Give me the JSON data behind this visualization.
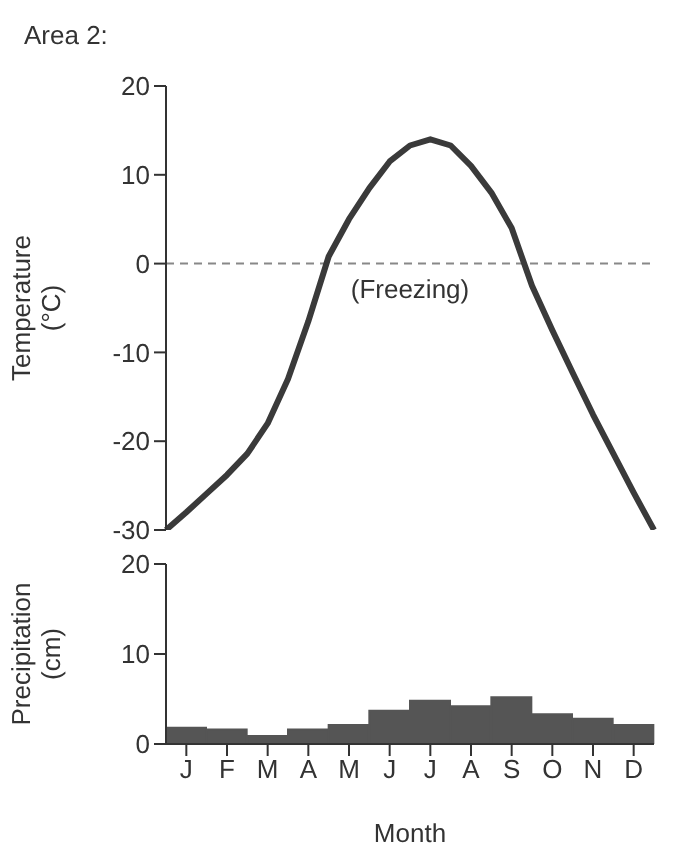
{
  "chart_data": [
    {
      "type": "line",
      "title": "Area 2:",
      "ylabel": "Temperature (°C)",
      "categories": [
        null,
        null,
        null,
        null,
        null,
        null,
        null,
        null,
        null,
        null,
        null,
        null,
        null,
        null,
        null,
        null,
        null,
        null,
        null,
        null,
        null,
        null,
        null,
        null,
        null
      ],
      "series": [
        {
          "color": "#3a3a3a",
          "values": [
            -30,
            -28,
            -25.9,
            -23.8,
            -21.4,
            -18,
            -13,
            -6.5,
            0.8,
            5,
            8.5,
            11.5,
            13.3,
            14,
            13.3,
            11,
            8,
            4,
            -2.5,
            -7.5,
            -12.3,
            -17,
            -21.4,
            -25.8,
            -30
          ]
        }
      ],
      "ylim": [
        -30,
        20
      ],
      "yticks": [
        -30,
        -20,
        -10,
        0,
        10,
        20
      ],
      "tick_labels": "y",
      "ref_lines": [
        {
          "axis": "y",
          "value": 0,
          "label": "(Freezing)",
          "color": "#888888",
          "line_style": "dashed"
        }
      ]
    },
    {
      "type": "bar",
      "xlabel": "Month",
      "ylabel": "Precipitation (cm)",
      "categories": [
        "J",
        "F",
        "M",
        "A",
        "M",
        "J",
        "J",
        "A",
        "S",
        "O",
        "N",
        "D"
      ],
      "series": [
        {
          "color": "#555555",
          "values": [
            1.8,
            1.6,
            0.9,
            1.6,
            2.1,
            3.7,
            4.8,
            4.2,
            5.2,
            3.3,
            2.8,
            2.1
          ]
        }
      ],
      "ylim": [
        0,
        20
      ],
      "yticks": [
        0,
        10,
        20
      ]
    }
  ]
}
